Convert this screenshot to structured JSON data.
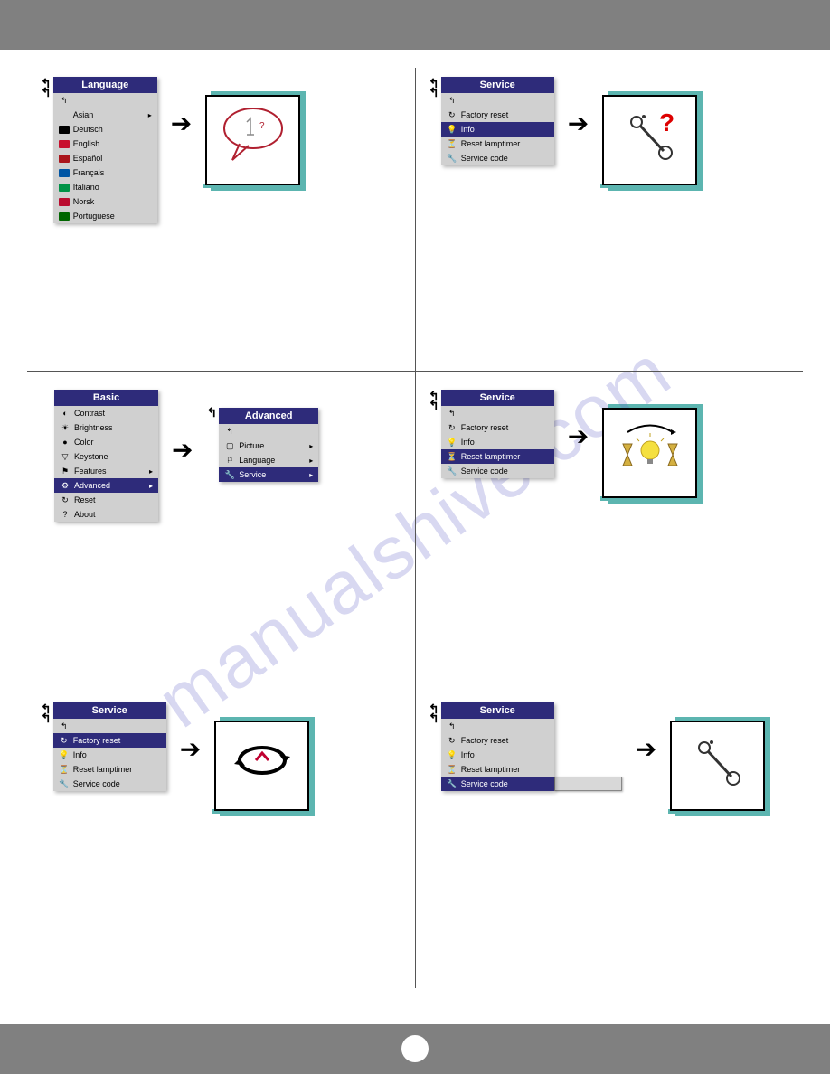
{
  "colors": {
    "header_bg": "#2e2b7a",
    "header_text": "#ffffff",
    "menu_bg": "#d0d0d0",
    "bar_bg": "#808080",
    "teal_shadow": "#5cb5b0",
    "watermark_color": "rgba(110,110,200,0.3)"
  },
  "watermark": "manualshive.com",
  "cells": {
    "language": {
      "title": "Language",
      "items": [
        {
          "label": "",
          "back": true
        },
        {
          "label": "Asian",
          "submenu": true
        },
        {
          "label": "Deutsch",
          "flag": "#000000"
        },
        {
          "label": "English",
          "flag": "#c8102e"
        },
        {
          "label": "Español",
          "flag": "#aa151b"
        },
        {
          "label": "Français",
          "flag": "#0055a4"
        },
        {
          "label": "Italiano",
          "flag": "#009246"
        },
        {
          "label": "Norsk",
          "flag": "#ba0c2f"
        },
        {
          "label": "Portuguese",
          "flag": "#006600"
        }
      ]
    },
    "basic": {
      "title": "Basic",
      "items": [
        {
          "label": "Contrast",
          "icon": "◐"
        },
        {
          "label": "Brightness",
          "icon": "☀"
        },
        {
          "label": "Color",
          "icon": "●"
        },
        {
          "label": "Keystone",
          "icon": "▽"
        },
        {
          "label": "Features",
          "icon": "⚑",
          "submenu": true
        },
        {
          "label": "Advanced",
          "icon": "⚙",
          "submenu": true,
          "selected": true
        },
        {
          "label": "Reset",
          "icon": "↻"
        },
        {
          "label": "About",
          "icon": "?"
        }
      ]
    },
    "advanced": {
      "title": "Advanced",
      "items": [
        {
          "label": "",
          "back": true
        },
        {
          "label": "Picture",
          "icon": "▢",
          "submenu": true
        },
        {
          "label": "Language",
          "icon": "⚐",
          "submenu": true
        },
        {
          "label": "Service",
          "icon": "🔧",
          "submenu": true,
          "selected": true
        }
      ]
    },
    "service_factory": {
      "title": "Service",
      "items": [
        {
          "label": "",
          "back": true
        },
        {
          "label": "Factory reset",
          "icon": "↻",
          "selected": true
        },
        {
          "label": "Info",
          "icon": "💡"
        },
        {
          "label": "Reset lamptimer",
          "icon": "⏳"
        },
        {
          "label": "Service code",
          "icon": "🔧"
        }
      ]
    },
    "service_info": {
      "title": "Service",
      "items": [
        {
          "label": "",
          "back": true
        },
        {
          "label": "Factory reset",
          "icon": "↻"
        },
        {
          "label": "Info",
          "icon": "💡",
          "selected": true
        },
        {
          "label": "Reset lamptimer",
          "icon": "⏳"
        },
        {
          "label": "Service code",
          "icon": "🔧"
        }
      ]
    },
    "service_lamp": {
      "title": "Service",
      "items": [
        {
          "label": "",
          "back": true
        },
        {
          "label": "Factory reset",
          "icon": "↻"
        },
        {
          "label": "Info",
          "icon": "💡"
        },
        {
          "label": "Reset lamptimer",
          "icon": "⏳",
          "selected": true
        },
        {
          "label": "Service code",
          "icon": "🔧"
        }
      ]
    },
    "service_code": {
      "title": "Service",
      "items": [
        {
          "label": "",
          "back": true
        },
        {
          "label": "Factory reset",
          "icon": "↻"
        },
        {
          "label": "Info",
          "icon": "💡"
        },
        {
          "label": "Reset lamptimer",
          "icon": "⏳"
        },
        {
          "label": "Service code",
          "icon": "🔧",
          "selected": true
        }
      ]
    }
  }
}
